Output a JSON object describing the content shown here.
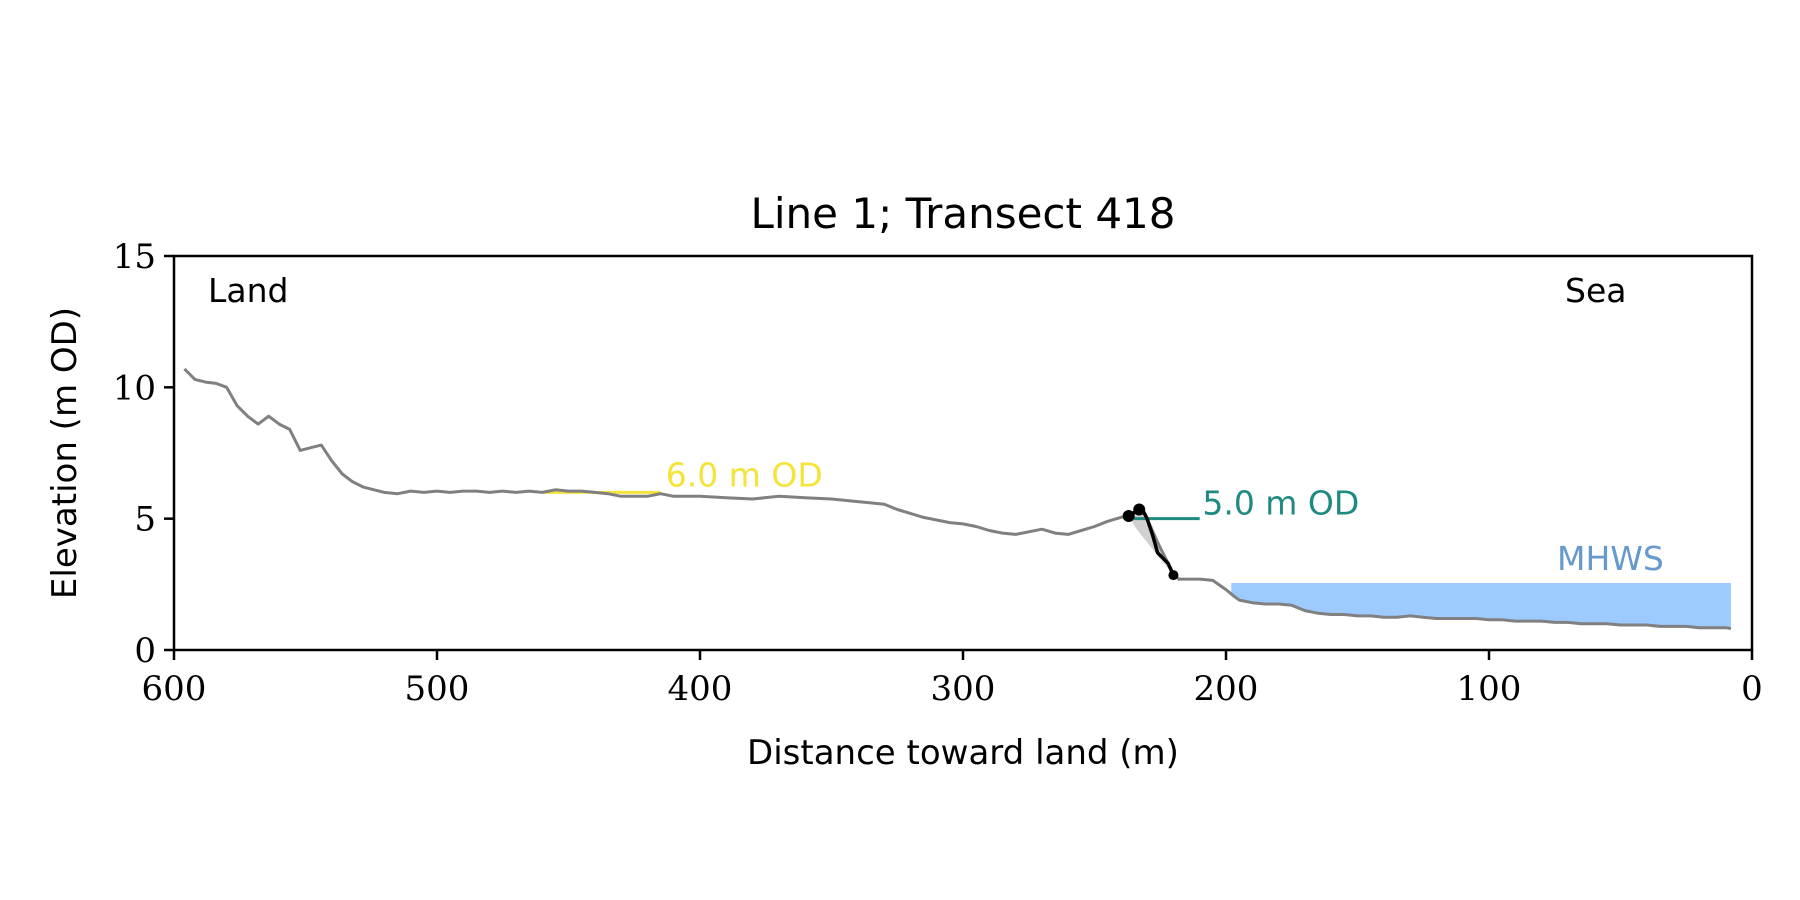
{
  "chart_data": {
    "type": "line",
    "title": "Line 1; Transect 418",
    "xlabel": "Distance toward land (m)",
    "ylabel": "Elevation (m OD)",
    "xlim": [
      600,
      0
    ],
    "ylim": [
      0,
      15
    ],
    "x_reversed": true,
    "grid": false,
    "x_ticks": [
      600,
      500,
      400,
      300,
      200,
      100,
      0
    ],
    "y_ticks": [
      0,
      5,
      10,
      15
    ],
    "annotations": {
      "land": "Land",
      "sea": "Sea",
      "mhws_label": "MHWS",
      "level_6_label": "6.0 m OD",
      "level_5_label": "5.0 m OD"
    },
    "mhws": {
      "level": 2.55,
      "x_range": [
        198,
        8
      ]
    },
    "level_6": {
      "level": 6.0,
      "x_range": [
        460,
        415
      ]
    },
    "level_5": {
      "level": 5.0,
      "x_range": [
        235,
        210
      ]
    },
    "cliff_top": {
      "x": 237,
      "y": 5.1
    },
    "cliff_toe": {
      "x": 220,
      "y": 2.85
    },
    "profile": {
      "x": [
        596,
        592,
        588,
        584,
        580,
        576,
        572,
        568,
        564,
        560,
        556,
        552,
        548,
        544,
        540,
        536,
        532,
        528,
        524,
        520,
        515,
        510,
        505,
        500,
        495,
        490,
        485,
        480,
        475,
        470,
        465,
        460,
        455,
        450,
        445,
        440,
        435,
        430,
        425,
        420,
        415,
        410,
        400,
        390,
        380,
        370,
        360,
        350,
        340,
        335,
        330,
        325,
        320,
        315,
        310,
        305,
        300,
        295,
        290,
        285,
        280,
        275,
        270,
        265,
        260,
        255,
        250,
        245,
        240,
        238,
        232,
        230,
        226,
        222,
        220,
        218,
        210,
        205,
        200,
        197,
        195,
        190,
        185,
        180,
        175,
        170,
        165,
        160,
        155,
        150,
        145,
        140,
        135,
        130,
        125,
        120,
        115,
        110,
        105,
        100,
        95,
        90,
        85,
        80,
        75,
        70,
        65,
        60,
        55,
        50,
        45,
        40,
        35,
        30,
        25,
        20,
        15,
        10,
        8
      ],
      "y": [
        10.7,
        10.3,
        10.2,
        10.15,
        10.0,
        9.3,
        8.9,
        8.6,
        8.9,
        8.6,
        8.4,
        7.6,
        7.7,
        7.8,
        7.2,
        6.7,
        6.4,
        6.2,
        6.1,
        6.0,
        5.95,
        6.05,
        6.0,
        6.05,
        6.0,
        6.05,
        6.05,
        6.0,
        6.05,
        6.0,
        6.05,
        6.0,
        6.1,
        6.05,
        6.05,
        6.0,
        5.95,
        5.85,
        5.85,
        5.85,
        5.95,
        5.85,
        5.85,
        5.8,
        5.75,
        5.85,
        5.8,
        5.75,
        5.65,
        5.6,
        5.55,
        5.35,
        5.2,
        5.05,
        4.95,
        4.85,
        4.8,
        4.7,
        4.55,
        4.45,
        4.4,
        4.5,
        4.6,
        4.45,
        4.4,
        4.55,
        4.7,
        4.9,
        5.05,
        5.1,
        5.4,
        5.0,
        4.1,
        3.3,
        2.9,
        2.7,
        2.7,
        2.65,
        2.3,
        2.05,
        1.9,
        1.8,
        1.75,
        1.75,
        1.7,
        1.5,
        1.4,
        1.35,
        1.35,
        1.3,
        1.3,
        1.25,
        1.25,
        1.3,
        1.25,
        1.2,
        1.2,
        1.2,
        1.2,
        1.15,
        1.15,
        1.1,
        1.1,
        1.1,
        1.05,
        1.05,
        1.0,
        1.0,
        1.0,
        0.95,
        0.95,
        0.95,
        0.9,
        0.9,
        0.9,
        0.85,
        0.85,
        0.85,
        0.82
      ]
    },
    "colors": {
      "profile": "#808080",
      "cliff": "#000000",
      "mhws_fill": "#9ecbff",
      "mhws_text": "#6699cc",
      "level_6": "#f5e33a",
      "level_5": "#1f8a80",
      "cliff_shade": "#d0d0d0"
    }
  }
}
